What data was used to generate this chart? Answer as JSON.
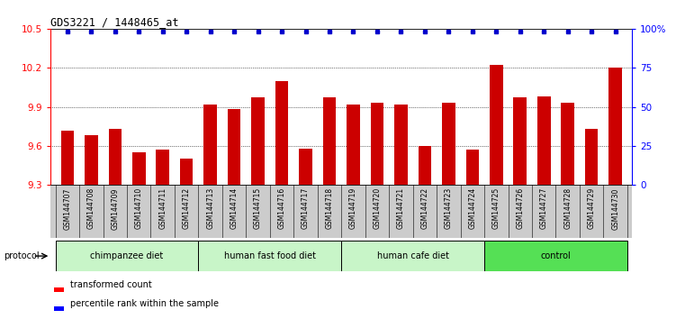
{
  "title": "GDS3221 / 1448465_at",
  "samples": [
    "GSM144707",
    "GSM144708",
    "GSM144709",
    "GSM144710",
    "GSM144711",
    "GSM144712",
    "GSM144713",
    "GSM144714",
    "GSM144715",
    "GSM144716",
    "GSM144717",
    "GSM144718",
    "GSM144719",
    "GSM144720",
    "GSM144721",
    "GSM144722",
    "GSM144723",
    "GSM144724",
    "GSM144725",
    "GSM144726",
    "GSM144727",
    "GSM144728",
    "GSM144729",
    "GSM144730"
  ],
  "bar_values": [
    9.72,
    9.68,
    9.73,
    9.55,
    9.57,
    9.5,
    9.92,
    9.88,
    9.97,
    10.1,
    9.58,
    9.97,
    9.92,
    9.93,
    9.92,
    9.6,
    9.93,
    9.57,
    10.22,
    9.97,
    9.98,
    9.93,
    9.73,
    10.2
  ],
  "groups": [
    {
      "label": "chimpanzee diet",
      "start": 0,
      "end": 6
    },
    {
      "label": "human fast food diet",
      "start": 6,
      "end": 12
    },
    {
      "label": "human cafe diet",
      "start": 12,
      "end": 18
    },
    {
      "label": "control",
      "start": 18,
      "end": 24
    }
  ],
  "group_colors": [
    "#c8f5c8",
    "#c8f5c8",
    "#c8f5c8",
    "#55e055"
  ],
  "bar_color": "#cc0000",
  "percentile_color": "#0000cc",
  "ylim_left": [
    9.3,
    10.5
  ],
  "ylim_right": [
    0,
    100
  ],
  "yticks_left": [
    9.3,
    9.6,
    9.9,
    10.2,
    10.5
  ],
  "yticks_right": [
    0,
    25,
    50,
    75,
    100
  ],
  "grid_values": [
    9.6,
    9.9,
    10.2
  ],
  "background_color": "#ffffff",
  "protocol_label": "protocol"
}
